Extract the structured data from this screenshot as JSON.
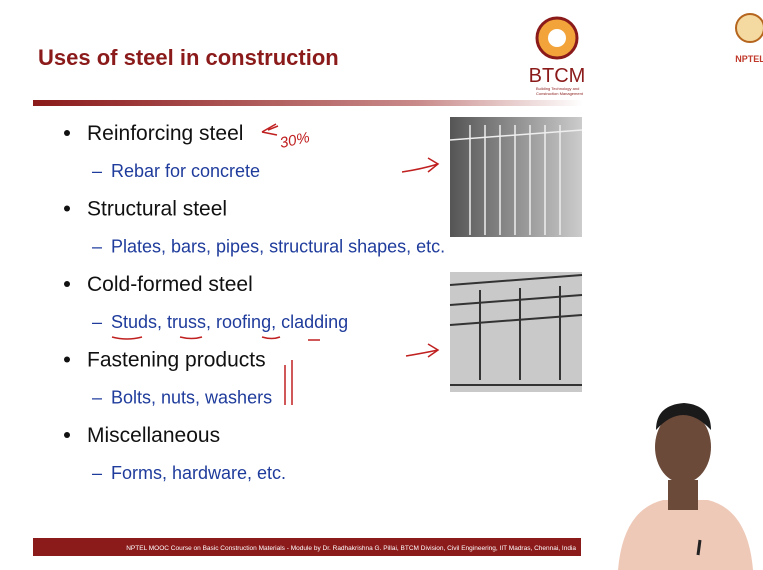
{
  "header": {
    "title": "Uses of steel in construction",
    "logo": {
      "acronym": "BTCM",
      "line1": "Building Technology and",
      "line2": "Construction Management"
    },
    "corner_logo": "NPTEL"
  },
  "bullets": [
    {
      "text": "Reinforcing steel",
      "sub": "Rebar for concrete"
    },
    {
      "text": "Structural steel",
      "sub": "Plates, bars, pipes, structural shapes, etc."
    },
    {
      "text": "Cold-formed steel",
      "sub": "Studs, truss, roofing, cladding"
    },
    {
      "text": "Fastening products",
      "sub": "Bolts, nuts, washers"
    },
    {
      "text": "Miscellaneous",
      "sub": "Forms, hardware, etc."
    }
  ],
  "annotation": "30%",
  "footer": "NPTEL MOOC Course on Basic Construction Materials - Module by Dr. Radhakrishna G. Pillai, BTCM Division, Civil Engineering, IIT Madras, Chennai, India"
}
